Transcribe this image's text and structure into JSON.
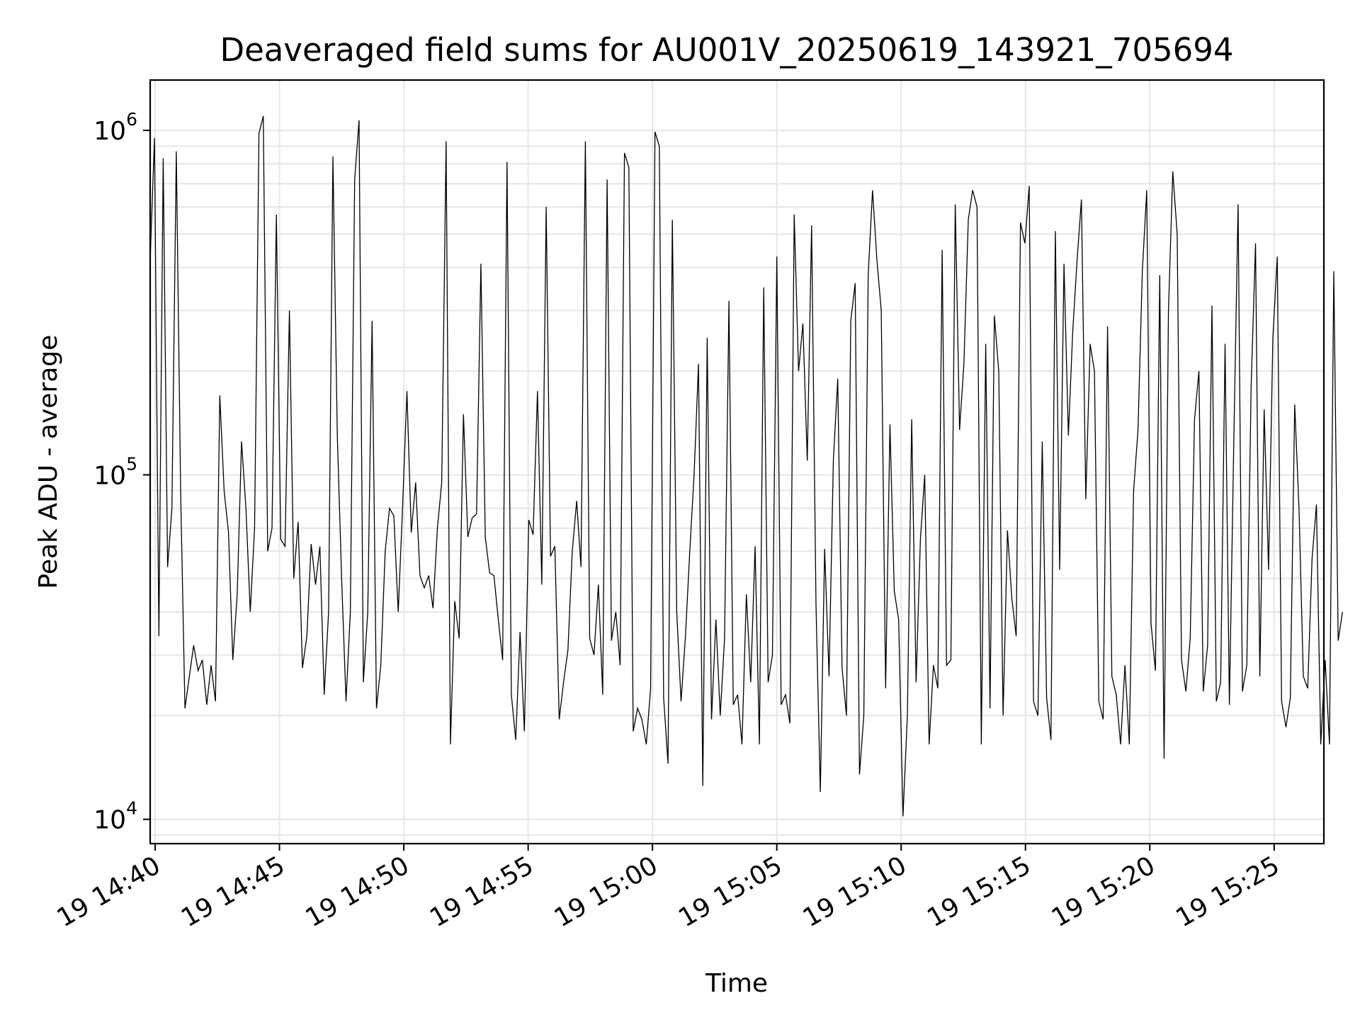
{
  "chart_data": {
    "type": "line",
    "title": "Deaveraged field sums for AU001V_20250619_143921_705694",
    "xlabel": "Time",
    "ylabel": "Peak ADU - average",
    "yscale": "log",
    "ylim": [
      8500,
      1400000
    ],
    "xlim": [
      "19 14:39:48",
      "19 15:27:00"
    ],
    "grid": true,
    "line_color": "#000000",
    "x_ticks": [
      "19 14:40",
      "19 14:45",
      "19 14:50",
      "19 14:55",
      "19 15:00",
      "19 15:05",
      "19 15:10",
      "19 15:15",
      "19 15:20",
      "19 15:25"
    ],
    "y_ticks": [
      {
        "value": 10000,
        "base": "10",
        "exp": "4"
      },
      {
        "value": 100000,
        "base": "10",
        "exp": "5"
      },
      {
        "value": 1000000,
        "base": "10",
        "exp": "6"
      }
    ],
    "series": [
      {
        "start_time": "19 14:39:48",
        "interval_seconds": 10.5,
        "values": [
          420000,
          950000,
          34000,
          830000,
          54000,
          80000,
          870000,
          90000,
          21000,
          26000,
          32000,
          27000,
          29000,
          21500,
          28000,
          22000,
          170000,
          90000,
          68000,
          29000,
          45000,
          125000,
          80000,
          40000,
          70000,
          980000,
          1100000,
          60000,
          70000,
          570000,
          65000,
          62000,
          300000,
          50000,
          73000,
          27500,
          34000,
          63000,
          48000,
          62000,
          23000,
          40000,
          840000,
          130000,
          50000,
          22000,
          40000,
          720000,
          1070000,
          25000,
          40000,
          280000,
          21000,
          28000,
          60000,
          80000,
          76000,
          40000,
          80000,
          175000,
          68000,
          95000,
          51000,
          47000,
          51000,
          41000,
          70000,
          95000,
          930000,
          16500,
          43000,
          33500,
          150000,
          66000,
          75000,
          77000,
          410000,
          66000,
          52000,
          51000,
          38000,
          29000,
          810000,
          23000,
          17000,
          35000,
          18000,
          74000,
          67000,
          175000,
          48000,
          600000,
          58000,
          62000,
          19500,
          25000,
          31000,
          60000,
          84000,
          54000,
          930000,
          33500,
          30000,
          48000,
          23000,
          720000,
          33000,
          40000,
          28000,
          860000,
          780000,
          18000,
          21000,
          19500,
          16500,
          24000,
          990000,
          900000,
          22500,
          14500,
          550000,
          40000,
          22000,
          34000,
          60000,
          100000,
          210000,
          12500,
          250000,
          19500,
          38000,
          20000,
          33500,
          320000,
          21500,
          23000,
          16500,
          45000,
          25000,
          62000,
          16500,
          350000,
          25000,
          30000,
          430000,
          21500,
          23000,
          19000,
          570000,
          200000,
          275000,
          110000,
          530000,
          42000,
          12000,
          61000,
          26000,
          110000,
          190000,
          27500,
          20000,
          280000,
          360000,
          13500,
          20000,
          380000,
          670000,
          420000,
          300000,
          24000,
          140000,
          46000,
          38000,
          10200,
          20000,
          145000,
          25000,
          65000,
          100000,
          16500,
          28000,
          24000,
          450000,
          28000,
          29000,
          610000,
          135000,
          210000,
          550000,
          670000,
          600000,
          16500,
          240000,
          21000,
          290000,
          200000,
          20000,
          69000,
          44000,
          34000,
          540000,
          470000,
          690000,
          22000,
          20000,
          125000,
          22500,
          17000,
          510000,
          53000,
          410000,
          130000,
          260000,
          420000,
          630000,
          85000,
          240000,
          200000,
          22000,
          19500,
          270000,
          26000,
          23000,
          16500,
          28000,
          16500,
          90000,
          135000,
          390000,
          670000,
          37000,
          27000,
          380000,
          15000,
          300000,
          760000,
          500000,
          29000,
          23500,
          33500,
          145000,
          200000,
          23500,
          32000,
          310000,
          22000,
          25000,
          240000,
          21500,
          120000,
          610000,
          23500,
          28000,
          180000,
          470000,
          26000,
          155000,
          53000,
          250000,
          430000,
          22000,
          18500,
          22500,
          160000,
          80000,
          26000,
          24000,
          57000,
          82000,
          16500,
          29000,
          16500,
          390000,
          33000,
          40000
        ]
      }
    ]
  }
}
